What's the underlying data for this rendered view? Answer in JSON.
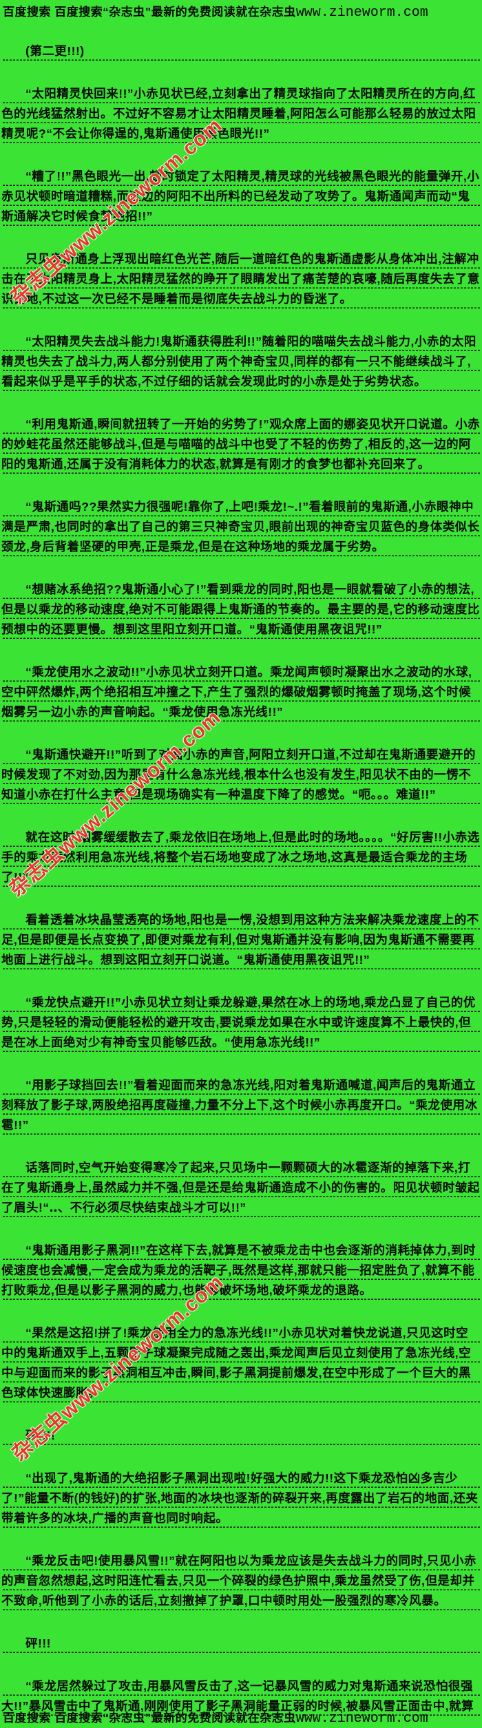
{
  "page": {
    "bg_color": "#3be334",
    "text_color": "#0a0a0a",
    "watermark_color": "#e23a28"
  },
  "banner": {
    "prefix": "百度搜索 百度搜索“杂志虫”最新的免费阅读就在杂志虫",
    "domain": "www.zineworm.com"
  },
  "watermark": {
    "text": "杂志虫www.zineworm.com"
  },
  "content": {
    "announcement": "(第二更!!!)",
    "paragraphs": [
      "“太阳精灵快回来!!”小赤见状已经,立刻拿出了精灵球指向了太阳精灵所在的方向,红色的光线猛然射出。不过好不容易才让太阳精灵睡着,阿阳怎么可能那么轻易的放过太阳精灵呢?“不会让你得逞的,鬼斯通使用黑色眼光!!”",
      "“糟了!!”黑色眼光一出,顿时锁定了太阳精灵,精灵球的光线被黑色眼光的能量弹开,小赤见状顿时暗道糟糕,而这边的阿阳不出所料的已经发动了攻势了。鬼斯通闻声而动“鬼斯通解决它时候食梦绝招!!”",
      "只见鬼斯通身上浮现出暗红色光芒,随后一道暗红色的鬼斯通虚影从身体冲出,注解冲击在了太阳精灵身上,太阳精灵猛然的睁开了眼睛发出了痛苦楚的哀嚎,随后再度失去了意识倒地,不过这一次已经不是睡着而是彻底失去战斗力的昏迷了。",
      "“太阳精灵失去战斗能力!鬼斯通获得胜利!!”随着阳的喵喵失去战斗能力,小赤的太阳精灵也失去了战斗力,两人都分别使用了两个神奇宝贝,同样的都有一只不能继续战斗了,看起来似乎是平手的状态,不过仔细的话就会发现此时的小赤是处于劣势状态。",
      "“利用鬼斯通,瞬间就扭转了一开始的劣势了!”观众席上面的娜姿见状开口说道。小赤的妙蛙花虽然还能够战斗,但是与喵喵的战斗中也受了不轻的伤势了,相反的,这一边的阿阳的鬼斯通,还属于没有消耗体力的状态,就算是有刚才的食梦也都补充回来了。",
      "“鬼斯通吗??果然实力很强呢!靠你了,上吧!乘龙!~.!”看着眼前的鬼斯通,小赤眼神中满是严肃,也同时的拿出了自己的第三只神奇宝贝,眼前出现的神奇宝贝蓝色的身体类似长颈龙,身后背着坚硬的甲壳,正是乘龙,但是在这种场地的乘龙属于劣势。",
      "“想赌冰系绝招??鬼斯通小心了!”看到乘龙的同时,阳也是一眼就看破了小赤的想法,但是以乘龙的移动速度,绝对不可能跟得上鬼斯通的节奏的。最主要的是,它的移动速度比预想中的还要更慢。想到这里阳立刻开口道。“鬼斯通使用黑夜诅咒!!”",
      "“乘龙使用水之波动!!”小赤见状立刻开口道。乘龙闻声顿时凝聚出水之波动的水球,空中砰然爆炸,两个绝招相互冲撞之下,产生了强烈的爆破烟雾顿时掩盖了现场,这个时候烟雾另一边小赤的声音响起。“乘龙使用急冻光线!!”",
      "“鬼斯通快避开!!”听到了对面小赤的声音,阿阳立刻开口道,不过却在鬼斯通要避开的时候发现了不对劲,因为那里有什么急冻光线,根本什么也没有发生,阳见状不由的一愣不知道小赤在打什么主意,但是现场确实有一种温度下降了的感觉。“呃。。。难道!!”",
      "就在这时,烟雾缓缓散去了,乘龙依旧在场地上,但是此时的场地。。。。“好厉害!!小赤选手的乘龙竟然利用急冻光线,将整个岩石场地变成了冰之场地,这真是最适合乘龙的主场了!!”",
      "看着透着冰块晶莹透亮的场地,阳也是一愣,没想到用这种方法来解决乘龙速度上的不足,但是即便是长点变换了,即便对乘龙有利,但对鬼斯通并没有影响,因为鬼斯通不需要再地面上进行战斗。想到这阳立刻开口说道。“鬼斯通使用黑夜诅咒!!”",
      "“乘龙快点避开!!”小赤见状立刻让乘龙躲避,果然在冰上的场地,乘龙凸显了自己的优势,只是轻轻的滑动便能轻松的避开攻击,要说乘龙如果在水中或许速度算不上最快的,但是在冰上面绝对少有神奇宝贝能够匹敌。“使用急冻光线!!”",
      "“用影子球挡回去!!”看着迎面而来的急冻光线,阳对着鬼斯通喊道,闻声后的鬼斯通立刻释放了影子球,两股绝招再度碰撞,力量不分上下,这个时候小赤再度开口。“乘龙使用冰雹!!”",
      "话落同时,空气开始变得寒冷了起来,只见场中一颗颗硕大的冰雹逐渐的掉落下来,打在了鬼斯通身上,虽然威力并不强,但是还是给鬼斯通造成不小的伤害的。阳见状顿时皱起了眉头!“‥、不行必须尽快结束战斗才可以!!”",
      "“鬼斯通用影子黑洞!!”在这样下去,就算是不被乘龙击中也会逐渐的消耗掉体力,到时候速度也会减慢,一定会成为乘龙的活靶子,既然是这样,那就只能一招定胜负了,就算不能打败乘龙,但是以影子黑洞的威力,也能够破坏场地,破坏乘龙的退路。",
      "“果然是这招!拼了!乘龙使用全力的急冻光线!!”小赤见状对着快龙说道,只见这时空中的鬼斯通双手上,五颗影子球凝聚完成随之轰出,乘龙闻声后见立刻使用了急冻光线,空中与迎面而来的影子黑洞相互冲击,瞬间,影子黑洞提前爆发,在空中形成了一个巨大的黑色球体快速膨胀。",
      "砰!!!!",
      "“出现了,鬼斯通的大绝招影子黑洞出现啦!好强大的威力!!这下乘龙恐怕凶多吉少了!”能量不断(的钱好)的扩张,地面的冰块也逐渐的碎裂开来,再度露出了岩石的地面,还夹带着许多的冰块,广播的声音也同时响起。",
      "“乘龙反击吧!使用暴风雪!!”就在阿阳也以为乘龙应该是失去战斗力的同时,只见小赤的声音忽然想起,这时阳连忙看去,只见一个碎裂的绿色护照中,乘龙虽然受了伤,但是却并不致命,听他到了小赤的话后,立刻撤掉了护罩,口中顿时用处一股强烈的寒冷风暴。",
      "砰!!!",
      "“乘龙居然躲过了攻击,用暴风雪反击了,这一记暴风雪的威力对鬼斯通来说恐怕很强大!!”暴风雪击中了鬼斯通,刚刚使用了影子黑洞能量正弱的时候,被暴风雪正面击中,就算"
    ]
  }
}
